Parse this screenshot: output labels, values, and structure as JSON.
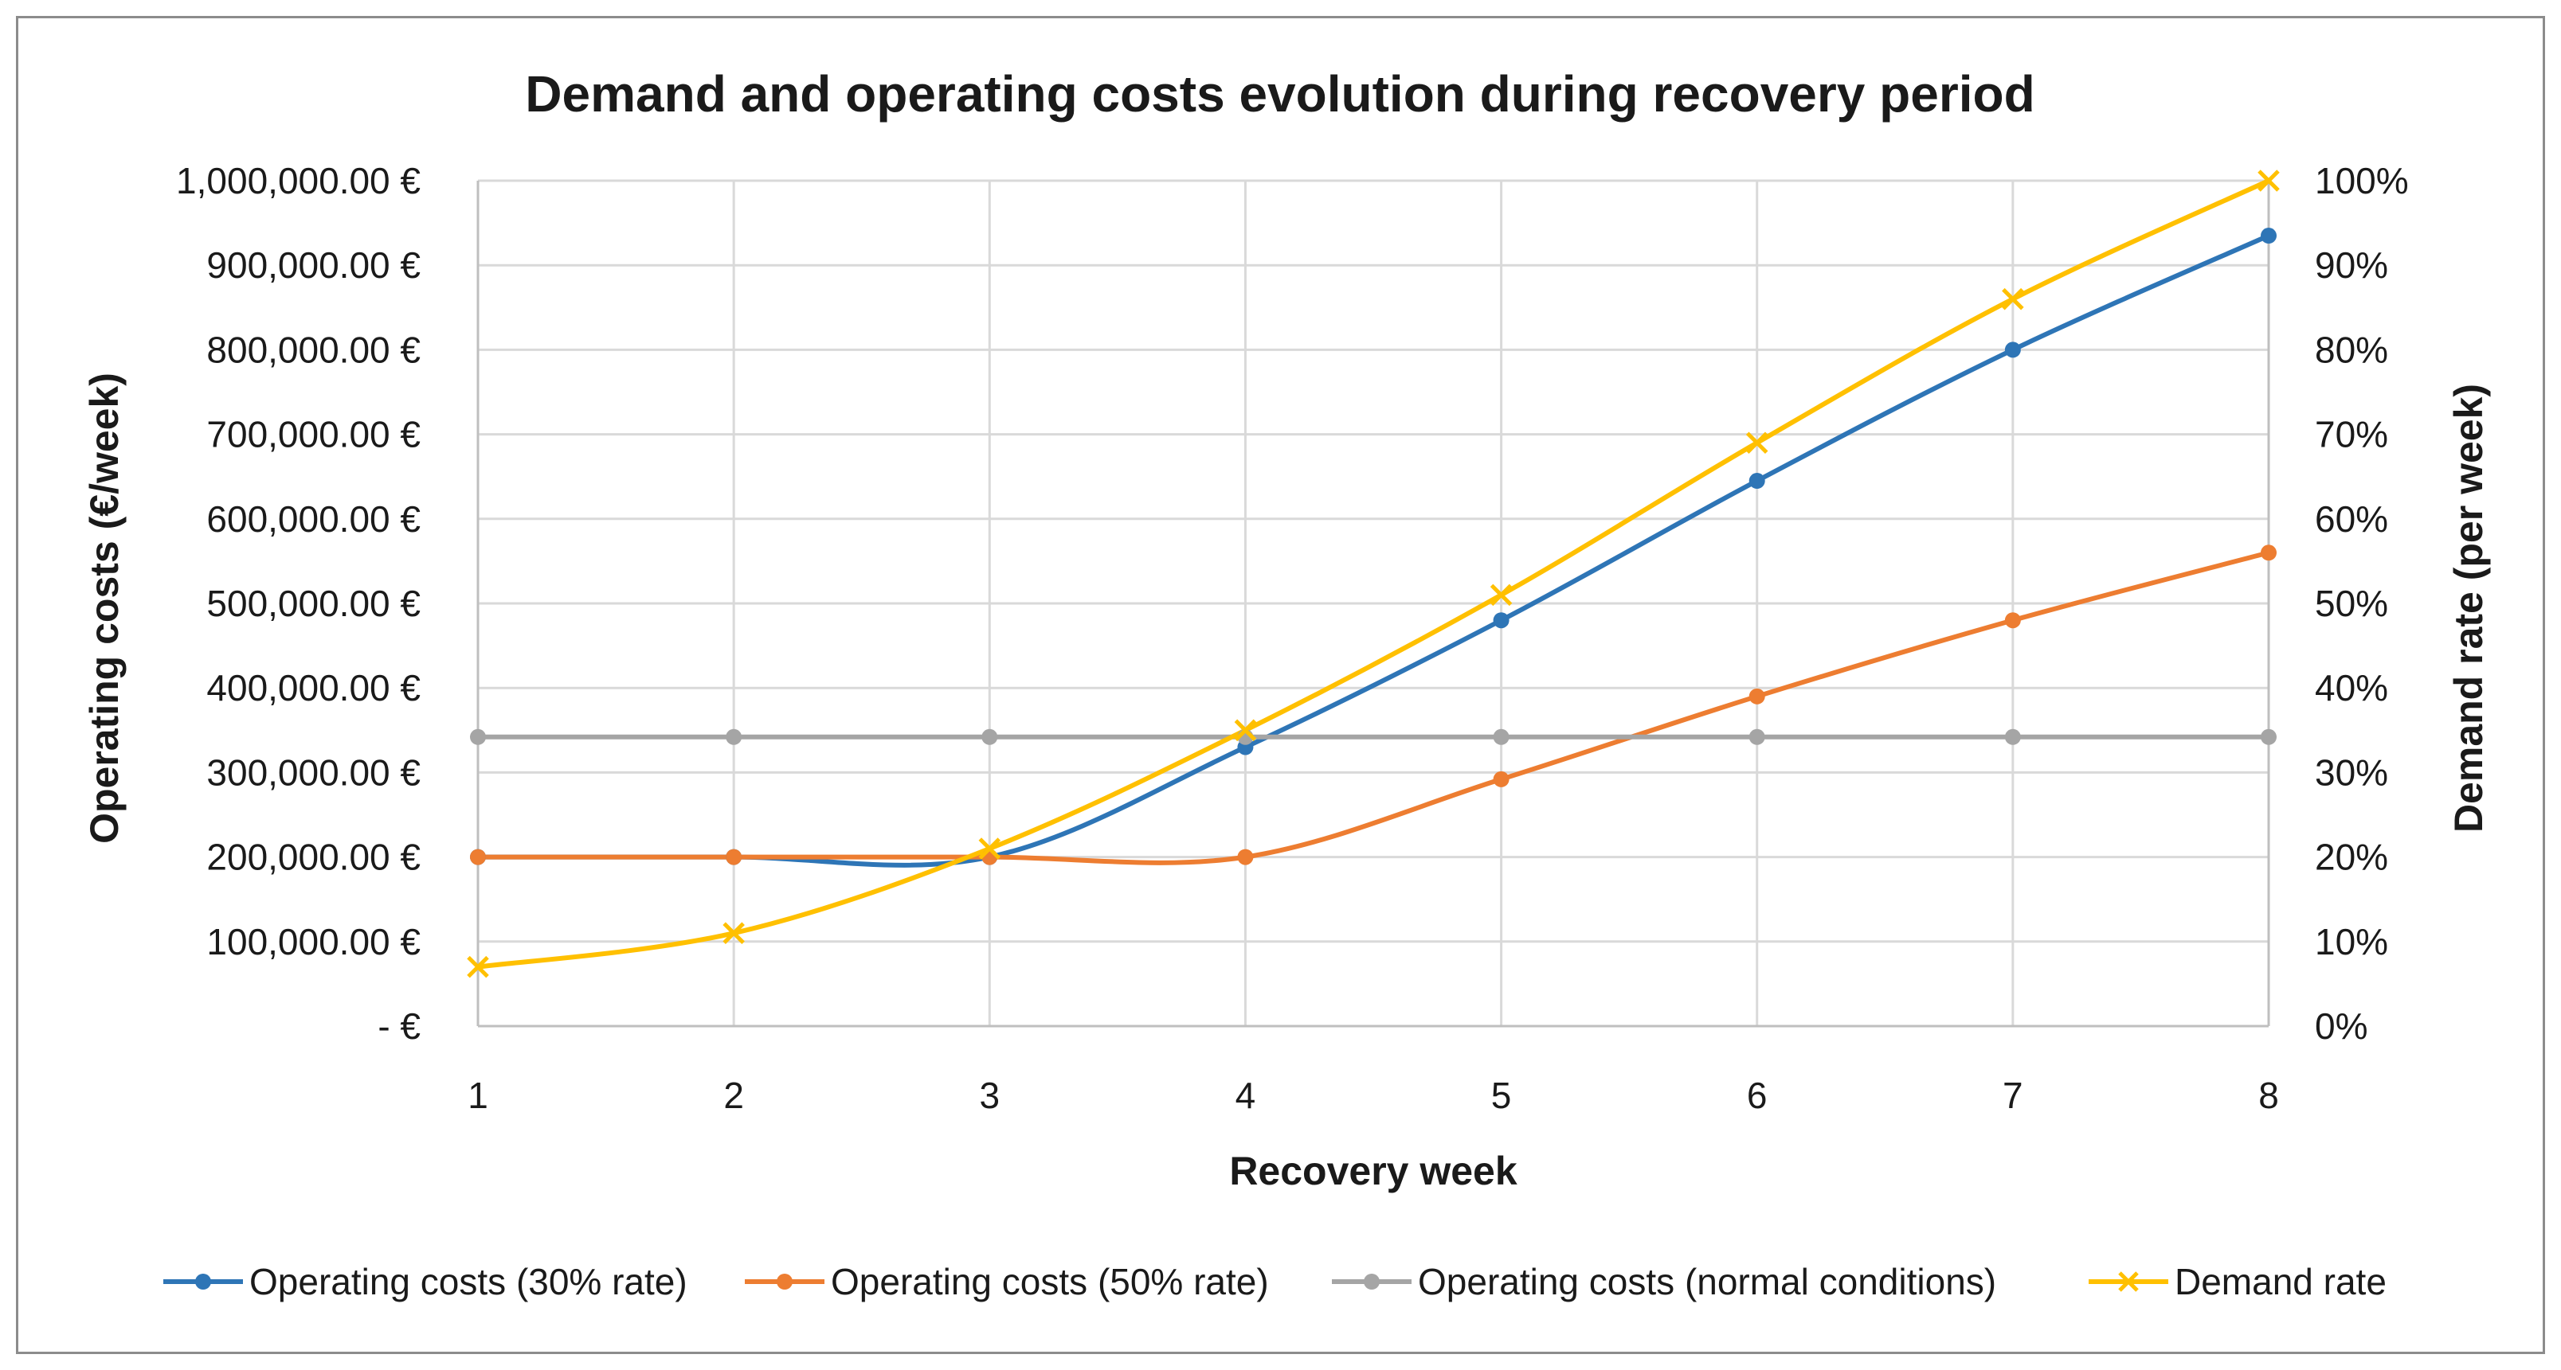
{
  "chart_data": {
    "type": "line",
    "title": "Demand and operating costs evolution during recovery period",
    "xlabel": "Recovery week",
    "ylabel_left": "Operating costs (€/week)",
    "ylabel_right": "Demand rate (per week)",
    "x": [
      1,
      2,
      3,
      4,
      5,
      6,
      7,
      8
    ],
    "ylim_left": [
      0,
      1000000
    ],
    "ylim_right": [
      0,
      100
    ],
    "y_ticks_left": [
      "-  €",
      "100,000.00 €",
      "200,000.00 €",
      "300,000.00 €",
      "400,000.00 €",
      "500,000.00 €",
      "600,000.00 €",
      "700,000.00 €",
      "800,000.00 €",
      "900,000.00 €",
      "1,000,000.00 €"
    ],
    "y_ticks_right": [
      "0%",
      "10%",
      "20%",
      "30%",
      "40%",
      "50%",
      "60%",
      "70%",
      "80%",
      "90%",
      "100%"
    ],
    "x_ticks": [
      "1",
      "2",
      "3",
      "4",
      "5",
      "6",
      "7",
      "8"
    ],
    "grid": true,
    "legend_position": "bottom",
    "series": [
      {
        "name": "Operating costs (30% rate)",
        "axis": "left",
        "color": "#2e75b6",
        "marker": "circle",
        "values": [
          200000,
          200000,
          200000,
          330000,
          480000,
          645000,
          800000,
          935000
        ]
      },
      {
        "name": "Operating costs (50% rate)",
        "axis": "left",
        "color": "#ed7d31",
        "marker": "circle",
        "values": [
          200000,
          200000,
          200000,
          200000,
          292000,
          390000,
          480000,
          560000
        ]
      },
      {
        "name": "Operating costs (normal conditions)",
        "axis": "left",
        "color": "#a5a5a5",
        "marker": "circle",
        "values": [
          342000,
          342000,
          342000,
          342000,
          342000,
          342000,
          342000,
          342000
        ]
      },
      {
        "name": "Demand rate",
        "axis": "right",
        "color": "#ffc000",
        "marker": "x",
        "values": [
          7,
          11,
          21,
          35,
          51,
          69,
          86,
          100
        ]
      }
    ]
  }
}
